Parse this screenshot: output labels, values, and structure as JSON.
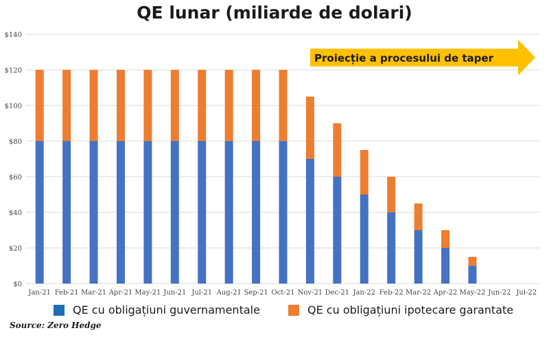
{
  "chart_data": {
    "type": "bar",
    "stacked": true,
    "title": "QE lunar (miliarde de dolari)",
    "categories": [
      "Jan-21",
      "Feb-21",
      "Mar-21",
      "Apr-21",
      "May-21",
      "Jun-21",
      "Jul-21",
      "Aug-21",
      "Sep-21",
      "Oct-21",
      "Nov-21",
      "Dec-21",
      "Jan-22",
      "Feb-22",
      "Mar-22",
      "Apr-22",
      "May-22",
      "Jun-22",
      "Jul-22"
    ],
    "series": [
      {
        "name": "QE cu obligațiuni guvernamentale",
        "color": "#4472c4",
        "values": [
          80,
          80,
          80,
          80,
          80,
          80,
          80,
          80,
          80,
          80,
          70,
          60,
          50,
          40,
          30,
          20,
          10,
          0,
          0
        ]
      },
      {
        "name": "QE cu obligațiuni ipotecare garantate",
        "color": "#ed7d31",
        "values": [
          40,
          40,
          40,
          40,
          40,
          40,
          40,
          40,
          40,
          40,
          35,
          30,
          25,
          20,
          15,
          10,
          5,
          0,
          0
        ]
      }
    ],
    "ylim": [
      0,
      140
    ],
    "yticks": [
      0,
      20,
      40,
      60,
      80,
      100,
      120,
      140
    ],
    "ytick_labels": [
      "$0",
      "$20",
      "$40",
      "$60",
      "$80",
      "$100",
      "$120",
      "$140"
    ],
    "grid": true,
    "legend_position": "bottom",
    "annotation": {
      "text": "Proiecție a procesului de taper",
      "color": "#ffc000"
    },
    "source": "Source: Zero Hedge"
  }
}
